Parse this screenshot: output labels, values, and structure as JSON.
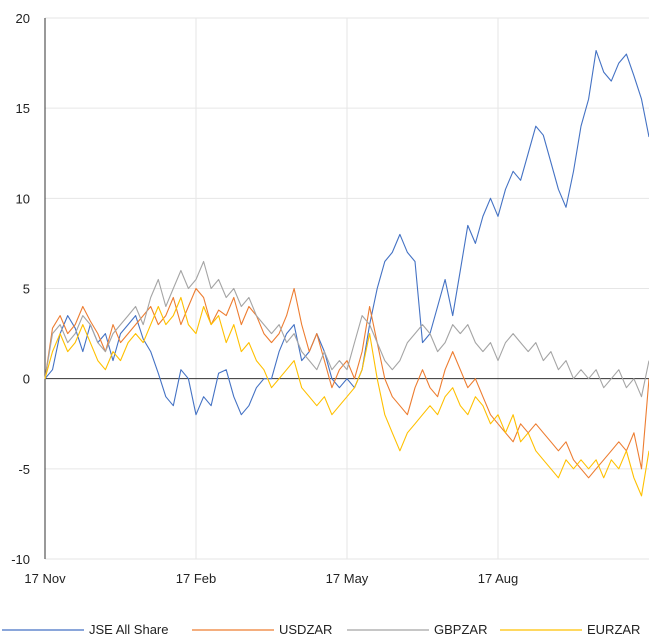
{
  "chart_data": {
    "type": "line",
    "title": "",
    "xlabel": "",
    "ylabel": "",
    "ylim": [
      -10,
      20
    ],
    "yticks": [
      -10,
      -5,
      0,
      5,
      10,
      15,
      20
    ],
    "xtick_labels": [
      "17 Nov",
      "17 Feb",
      "17 May",
      "17 Aug"
    ],
    "grid": true,
    "legend_position": "bottom",
    "x": [
      0,
      5,
      10,
      15,
      20,
      25,
      30,
      35,
      40,
      45,
      50,
      55,
      60,
      65,
      70,
      75,
      80,
      85,
      90,
      95,
      100,
      105,
      110,
      115,
      120,
      125,
      130,
      135,
      140,
      145,
      150,
      155,
      160,
      165,
      170,
      175,
      180,
      185,
      190,
      195,
      200,
      205,
      210,
      215,
      220,
      225,
      230,
      235,
      240,
      245,
      250,
      255,
      260,
      265,
      270,
      275,
      280,
      285,
      290,
      295,
      300,
      305,
      310,
      315,
      320,
      325,
      330,
      335,
      340,
      345,
      350,
      355,
      360,
      365,
      370,
      375,
      380,
      385,
      390,
      395,
      400
    ],
    "series": [
      {
        "name": "JSE All Share",
        "color": "#4472c4",
        "values": [
          0,
          0.5,
          2.5,
          3.5,
          2.8,
          1.5,
          3.0,
          2.0,
          2.5,
          1.0,
          2.5,
          3.0,
          3.5,
          2.2,
          1.5,
          0.3,
          -1.0,
          -1.5,
          0.5,
          0.0,
          -2.0,
          -1.0,
          -1.5,
          0.3,
          0.5,
          -1.0,
          -2.0,
          -1.5,
          -0.5,
          0.0,
          0.0,
          1.5,
          2.5,
          3.0,
          1.0,
          1.5,
          2.5,
          1.5,
          0.0,
          -0.5,
          0.0,
          -0.5,
          0.5,
          3.0,
          5.0,
          6.5,
          7.0,
          8.0,
          7.0,
          6.5,
          2.0,
          2.5,
          4.0,
          5.5,
          3.5,
          6.0,
          8.5,
          7.5,
          9.0,
          10.0,
          9.0,
          10.5,
          11.5,
          11.0,
          12.5,
          14.0,
          13.5,
          12.0,
          10.5,
          9.5,
          11.5,
          14.0,
          15.5,
          18.2,
          17.0,
          16.5,
          17.5,
          18.0,
          16.8,
          15.5,
          13.4
        ]
      },
      {
        "name": "USDZAR",
        "color": "#ed7d31",
        "values": [
          0,
          2.8,
          3.5,
          2.5,
          3.0,
          4.0,
          3.2,
          2.5,
          1.5,
          3.0,
          2.0,
          2.5,
          3.0,
          3.5,
          4.0,
          3.0,
          3.5,
          4.5,
          3.0,
          4.0,
          5.0,
          4.5,
          3.0,
          3.8,
          3.5,
          4.5,
          3.0,
          4.0,
          3.5,
          2.5,
          2.0,
          2.5,
          3.5,
          5.0,
          3.0,
          1.5,
          2.5,
          1.0,
          -0.5,
          0.5,
          1.0,
          0.0,
          1.5,
          4.0,
          2.0,
          0.0,
          -1.0,
          -1.5,
          -2.0,
          -0.5,
          0.5,
          -0.5,
          -1.0,
          0.5,
          1.5,
          0.5,
          -0.5,
          0.0,
          -1.0,
          -2.0,
          -2.5,
          -3.0,
          -3.5,
          -2.5,
          -3.0,
          -2.5,
          -3.0,
          -3.5,
          -4.0,
          -3.5,
          -4.5,
          -5.0,
          -5.5,
          -5.0,
          -4.5,
          -4.0,
          -3.5,
          -4.0,
          -3.0,
          -5.0,
          0.0
        ]
      },
      {
        "name": "GBPZAR",
        "color": "#a5a5a5",
        "values": [
          0,
          2.5,
          3.0,
          2.0,
          2.5,
          3.5,
          3.0,
          2.0,
          1.5,
          2.5,
          3.0,
          3.5,
          4.0,
          3.0,
          4.5,
          5.5,
          4.0,
          5.0,
          6.0,
          5.0,
          5.5,
          6.5,
          5.0,
          5.5,
          4.5,
          5.0,
          4.0,
          4.5,
          3.5,
          3.0,
          2.5,
          3.0,
          2.0,
          2.5,
          1.5,
          1.0,
          0.5,
          1.5,
          0.5,
          1.0,
          0.5,
          2.0,
          3.5,
          3.0,
          2.0,
          1.0,
          0.5,
          1.0,
          2.0,
          2.5,
          3.0,
          2.5,
          1.5,
          2.0,
          3.0,
          2.5,
          3.0,
          2.0,
          1.5,
          2.0,
          1.0,
          2.0,
          2.5,
          2.0,
          1.5,
          2.0,
          1.0,
          1.5,
          0.5,
          1.0,
          0.0,
          0.5,
          0.0,
          0.5,
          -0.5,
          0.0,
          0.5,
          -0.5,
          0.0,
          -1.0,
          1.0
        ]
      },
      {
        "name": "EURZAR",
        "color": "#ffc000",
        "values": [
          0,
          1.5,
          2.5,
          1.5,
          2.0,
          3.0,
          2.0,
          1.0,
          0.5,
          1.5,
          1.0,
          2.0,
          2.5,
          2.0,
          3.0,
          4.0,
          3.0,
          3.5,
          4.5,
          3.0,
          2.5,
          4.0,
          3.0,
          3.5,
          2.0,
          3.0,
          1.5,
          2.0,
          1.0,
          0.5,
          -0.5,
          0.0,
          0.5,
          1.0,
          -0.5,
          -1.0,
          -1.5,
          -1.0,
          -2.0,
          -1.5,
          -1.0,
          -0.5,
          0.5,
          2.5,
          0.0,
          -2.0,
          -3.0,
          -4.0,
          -3.0,
          -2.5,
          -2.0,
          -1.5,
          -2.0,
          -1.0,
          -0.5,
          -1.5,
          -2.0,
          -1.0,
          -1.5,
          -2.5,
          -2.0,
          -3.0,
          -2.0,
          -3.5,
          -3.0,
          -4.0,
          -4.5,
          -5.0,
          -5.5,
          -4.5,
          -5.0,
          -4.5,
          -5.0,
          -4.5,
          -5.5,
          -4.5,
          -5.0,
          -4.0,
          -5.5,
          -6.5,
          -4.0
        ]
      }
    ]
  }
}
